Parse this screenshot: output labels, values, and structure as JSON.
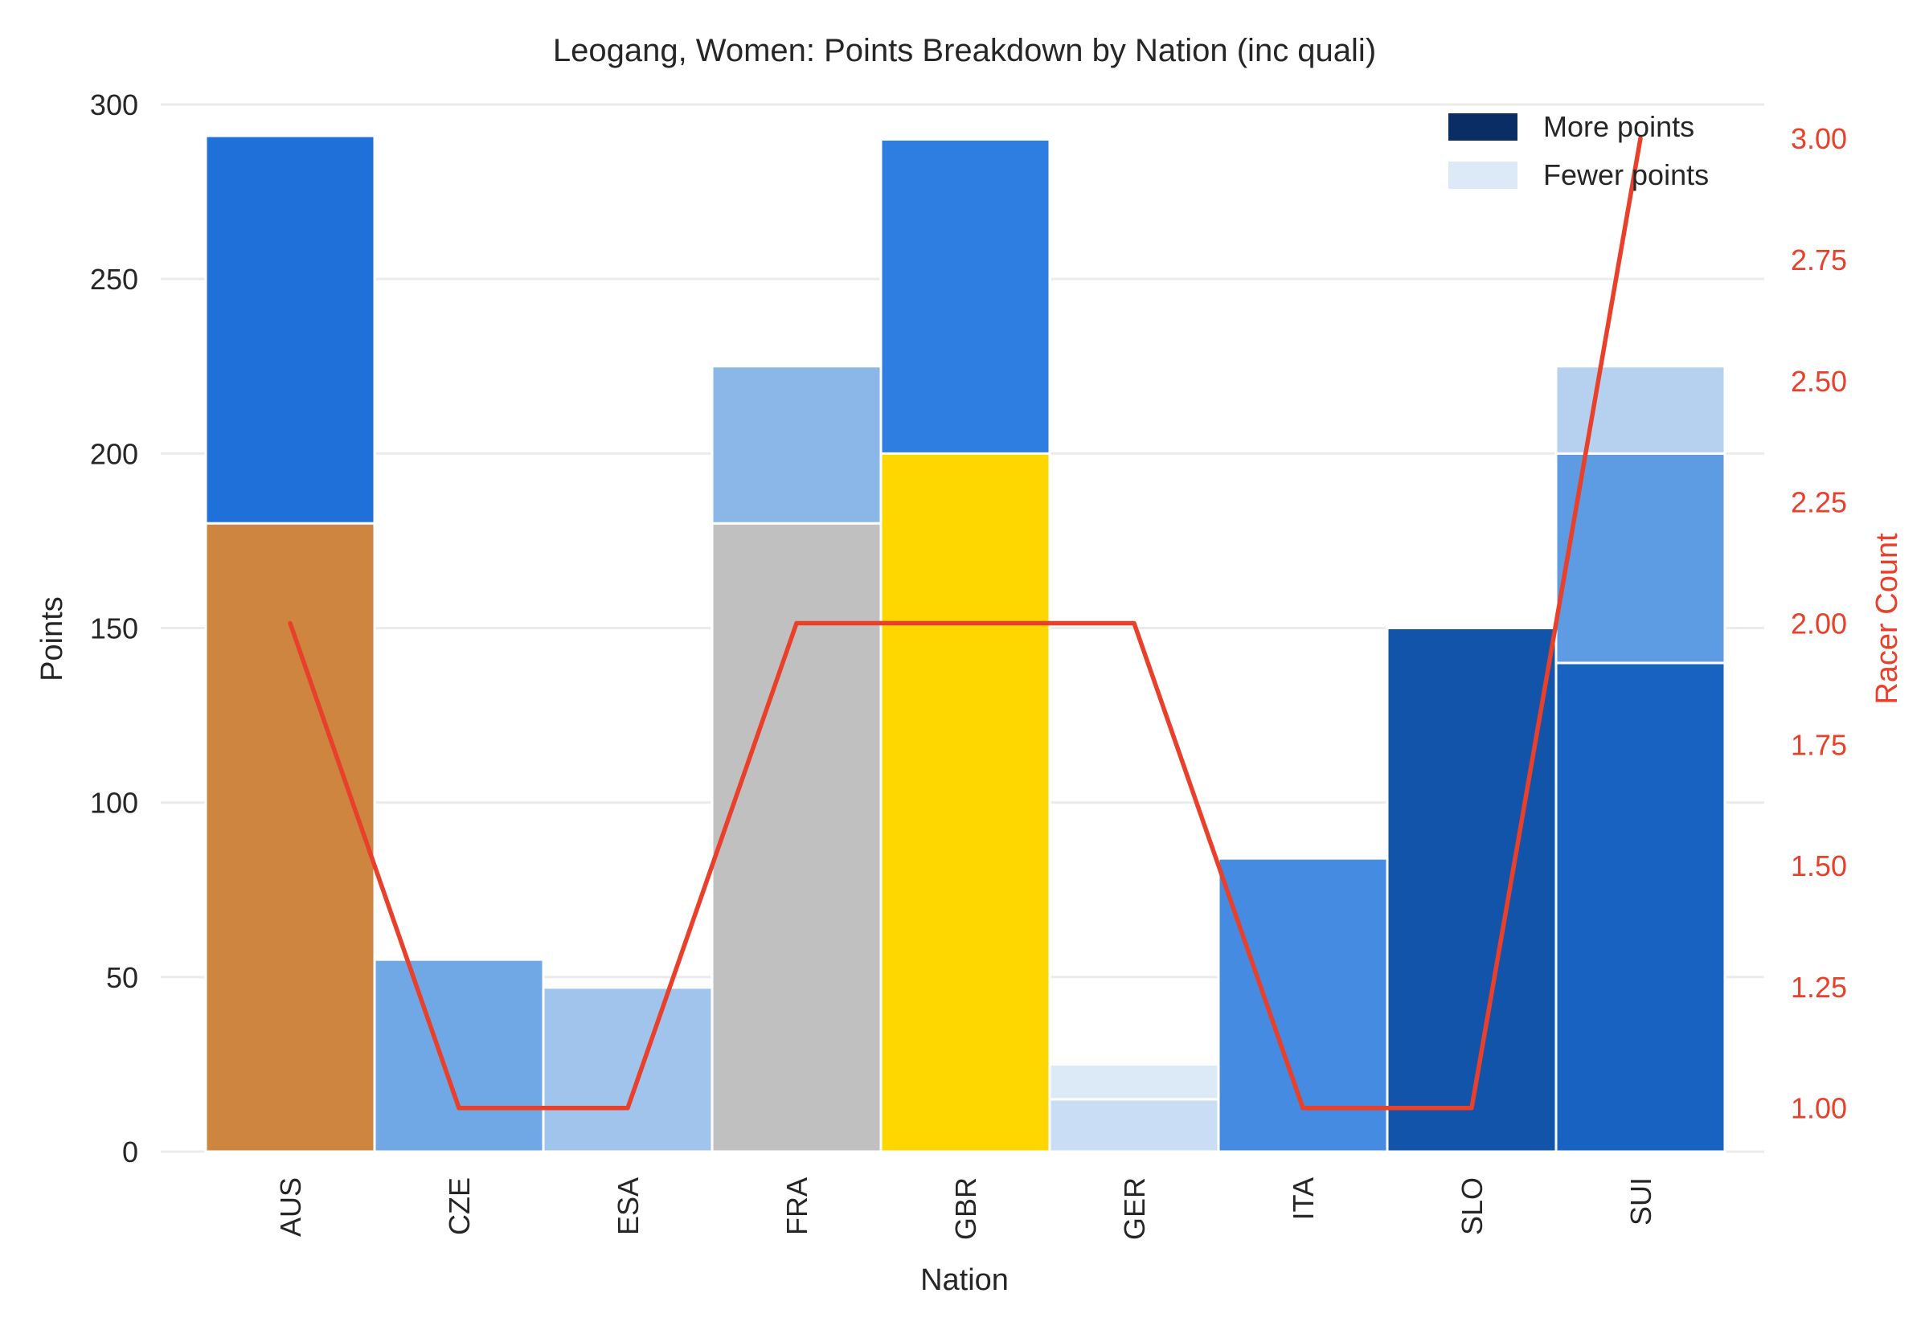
{
  "chart_data": {
    "type": "bar",
    "title": "Leogang, Women: Points Breakdown by Nation (inc quali)",
    "xlabel": "Nation",
    "ylabel": "Points",
    "y2label": "Racer Count",
    "categories": [
      "AUS",
      "CZE",
      "ESA",
      "FRA",
      "GBR",
      "GER",
      "ITA",
      "SLO",
      "SUI"
    ],
    "ylim": [
      0,
      300
    ],
    "yticks": [
      "0",
      "50",
      "100",
      "150",
      "200",
      "250",
      "300"
    ],
    "y2lim": [
      0.91,
      3.07
    ],
    "y2ticks": [
      "1.00",
      "1.25",
      "1.50",
      "1.75",
      "2.00",
      "2.25",
      "2.50",
      "2.75",
      "3.00"
    ],
    "grid": "horizontal",
    "legend_position": "top-right",
    "legend": [
      {
        "label": "More points",
        "color": "#0b2d66"
      },
      {
        "label": "Fewer points",
        "color": "#dce9f6"
      }
    ],
    "stacks": [
      {
        "category": "AUS",
        "segments": [
          {
            "value": 180,
            "color": "#cd853f"
          },
          {
            "value": 111,
            "color": "#1f70d9"
          }
        ]
      },
      {
        "category": "CZE",
        "segments": [
          {
            "value": 55,
            "color": "#70a7e5"
          }
        ]
      },
      {
        "category": "ESA",
        "segments": [
          {
            "value": 47,
            "color": "#a0c4ec"
          }
        ]
      },
      {
        "category": "FRA",
        "segments": [
          {
            "value": 180,
            "color": "#c0c0c0"
          },
          {
            "value": 45,
            "color": "#8ab7e8"
          }
        ]
      },
      {
        "category": "GBR",
        "segments": [
          {
            "value": 200,
            "color": "#ffd700"
          },
          {
            "value": 90,
            "color": "#2d7ee0"
          }
        ]
      },
      {
        "category": "GER",
        "segments": [
          {
            "value": 15,
            "color": "#c9def4"
          },
          {
            "value": 10,
            "color": "#dce9f6"
          }
        ]
      },
      {
        "category": "ITA",
        "segments": [
          {
            "value": 84,
            "color": "#448be1"
          }
        ]
      },
      {
        "category": "SLO",
        "segments": [
          {
            "value": 150,
            "color": "#1254aa"
          }
        ]
      },
      {
        "category": "SUI",
        "segments": [
          {
            "value": 140,
            "color": "#1862c1"
          },
          {
            "value": 60,
            "color": "#5d9be3"
          },
          {
            "value": 25,
            "color": "#b5d1ef"
          }
        ]
      }
    ],
    "line_series": {
      "name": "Racer Count",
      "color": "#e8402a",
      "values": [
        2,
        1,
        1,
        2,
        2,
        2,
        1,
        1,
        3
      ]
    },
    "axis2_color": "#e8402a"
  }
}
